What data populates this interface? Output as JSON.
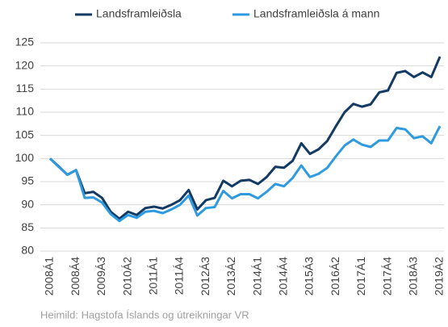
{
  "chart_data": {
    "type": "line",
    "categories": [
      "2008Á1",
      null,
      null,
      "2008Á4",
      null,
      null,
      "2009Á3",
      null,
      null,
      "2010Á2",
      null,
      null,
      "2011Á1",
      null,
      null,
      "2011Á4",
      null,
      null,
      "2012Á3",
      null,
      null,
      "2013Á2",
      null,
      null,
      "2014Á1",
      null,
      null,
      "2014Á4",
      null,
      null,
      "2015Á3",
      null,
      null,
      "2016Á2",
      null,
      null,
      "2017Á1",
      null,
      null,
      "2017Á4",
      null,
      null,
      "2018Á3",
      null,
      null,
      "2019Á2"
    ],
    "series": [
      {
        "name": "Landsframleiðsla",
        "color": "#123a63",
        "values": [
          100,
          98.3,
          96.5,
          97.5,
          92.5,
          92.8,
          91.5,
          88.5,
          87,
          88.5,
          87.8,
          89.3,
          89.6,
          89.2,
          90,
          91,
          93.2,
          89,
          91,
          91.5,
          95.2,
          94,
          95.2,
          95.4,
          94.5,
          96,
          98.2,
          98,
          99.5,
          103.3,
          101,
          102,
          103.8,
          107,
          110,
          111.8,
          111.2,
          111.7,
          114.3,
          114.7,
          118.5,
          118.9,
          117.6,
          118.6,
          117.6,
          122
        ]
      },
      {
        "name": "Landsframleiðsla á mann",
        "color": "#2e9be0",
        "values": [
          100,
          98.2,
          96.5,
          97.5,
          91.5,
          91.6,
          90.5,
          88,
          86.5,
          87.8,
          87.2,
          88.5,
          88.7,
          88.2,
          89,
          90,
          92,
          87.7,
          89.3,
          89.5,
          93,
          91.4,
          92.3,
          92.3,
          91.4,
          92.8,
          94.5,
          94,
          95.8,
          98.5,
          96,
          96.7,
          98,
          100.5,
          102.8,
          104.1,
          103,
          102.5,
          103.9,
          103.9,
          106.6,
          106.3,
          104.4,
          104.8,
          103.3,
          107
        ]
      }
    ],
    "ylim": [
      80,
      125
    ],
    "yticks": [
      80,
      85,
      90,
      95,
      100,
      105,
      110,
      115,
      120,
      125
    ],
    "grid": true,
    "legend": "top",
    "source": "Heimild: Hagstofa Íslands og útreikningar VR"
  }
}
